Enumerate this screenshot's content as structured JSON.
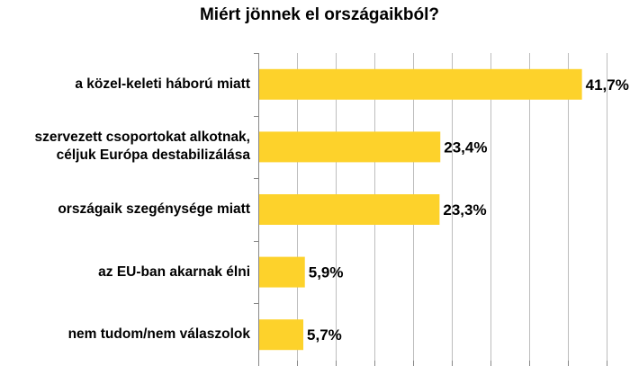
{
  "chart_data": {
    "type": "bar",
    "orientation": "horizontal",
    "title": "Miért jönnek el országaikból?",
    "categories": [
      [
        "a közel-keleti háború miatt"
      ],
      [
        "szervezett csoportokat alkotnak,",
        "céljuk Európa destabilizálása"
      ],
      [
        "országaik szegénysége miatt"
      ],
      [
        "az EU-ban akarnak élni"
      ],
      [
        "nem tudom/nem válaszolok"
      ]
    ],
    "values": [
      41.7,
      23.4,
      23.3,
      5.9,
      5.7
    ],
    "value_labels": [
      "41,7%",
      "23,4%",
      "23,3%",
      "5,9%",
      "5,7%"
    ],
    "xlim": [
      0,
      45
    ],
    "grid": true,
    "colors": {
      "bar": "#FDD22B",
      "grid": "#BDBDBD",
      "axis": "#888888"
    }
  }
}
